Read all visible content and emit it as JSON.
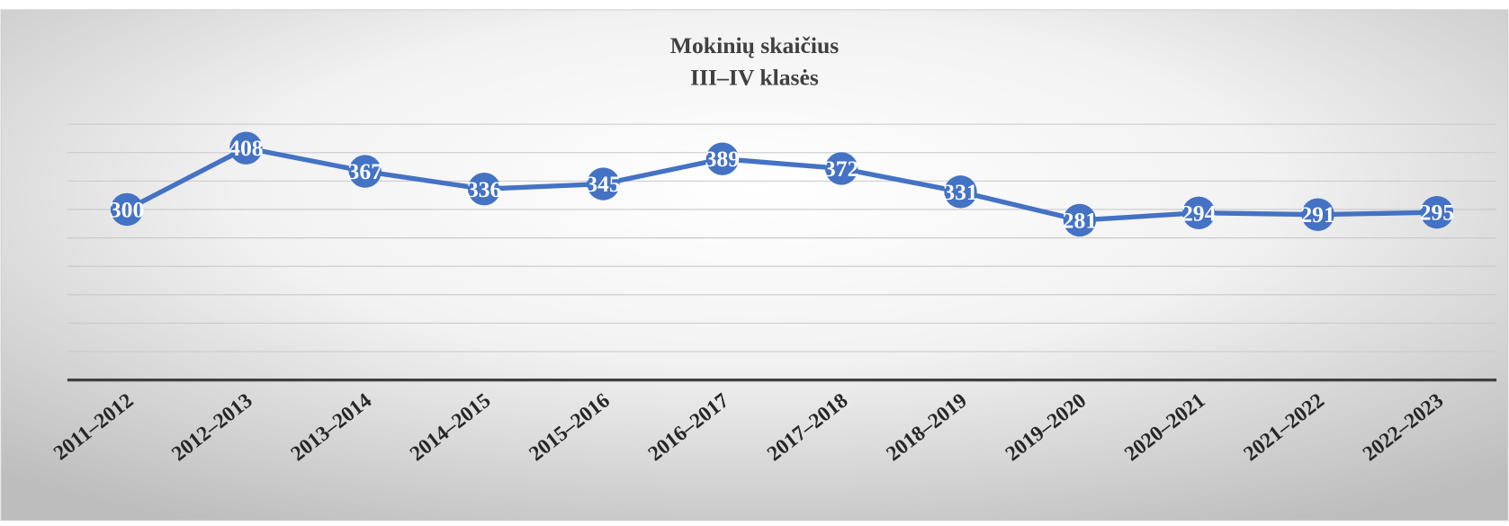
{
  "chart_data": {
    "type": "line",
    "title": "Mokinių skaičius",
    "subtitle": "III–IV klasės",
    "categories": [
      "2011–2012",
      "2012–2013",
      "2013–2014",
      "2014–2015",
      "2015–2016",
      "2016–2017",
      "2017–2018",
      "2018–2019",
      "2019–2020",
      "2020–2021",
      "2021–2022",
      "2022–2023"
    ],
    "series": [
      {
        "name": "Mokinių skaičius",
        "color": "#4472c4",
        "values": [
          300,
          408,
          367,
          336,
          345,
          389,
          372,
          331,
          281,
          294,
          291,
          295
        ]
      }
    ],
    "ylim": [
      0,
      450
    ],
    "yticks": [
      0,
      50,
      100,
      150,
      200,
      250,
      300,
      350,
      400,
      450
    ],
    "grid": true
  }
}
